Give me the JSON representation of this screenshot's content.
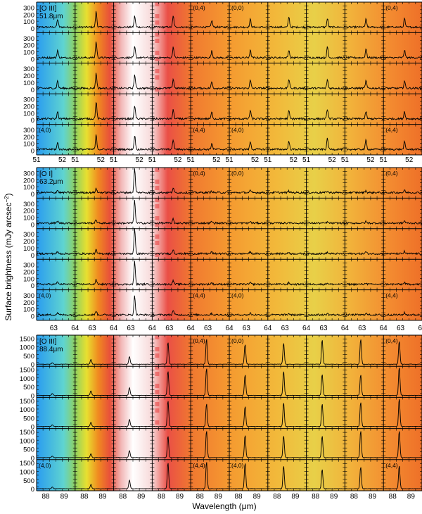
{
  "figure": {
    "ylabel_parts": [
      "Surface brightness (mJy arcsec",
      "−2",
      ")"
    ],
    "xlabel": "Wavelength (μm)"
  },
  "chart_data": [
    {
      "type": "line",
      "panel_label": "[O III]",
      "line_label": "51.8μm",
      "grid": {
        "rows": 5,
        "cols": 10
      },
      "xlim": [
        51.0,
        52.5
      ],
      "ylim": [
        -60,
        380
      ],
      "x_ticks": [
        "51",
        "52"
      ],
      "y_ticks": [
        "300",
        "200",
        "100",
        "0"
      ],
      "line_center": 51.82,
      "peak_per_column": [
        110,
        220,
        180,
        140,
        90,
        110,
        130,
        140,
        120,
        110
      ],
      "corner_labels": [
        {
          "text": "(0,4)",
          "row": 0,
          "col": 4
        },
        {
          "text": "(0,0)",
          "row": 0,
          "col": 5
        },
        {
          "text": "(0,4)",
          "row": 0,
          "col": 9
        },
        {
          "text": "(4,0)",
          "row": 4,
          "col": 0
        },
        {
          "text": "(4,4)",
          "row": 4,
          "col": 4
        },
        {
          "text": "(4,0)",
          "row": 4,
          "col": 5
        },
        {
          "text": "(4,4)",
          "row": 4,
          "col": 9
        }
      ]
    },
    {
      "type": "line",
      "panel_label": "[O I]",
      "line_label": "63.2μm",
      "grid": {
        "rows": 5,
        "cols": 10
      },
      "xlim": [
        62.2,
        64.0
      ],
      "ylim": [
        -60,
        380
      ],
      "x_ticks": [
        "63",
        "64"
      ],
      "y_ticks": [
        "300",
        "200",
        "100",
        "0"
      ],
      "line_center": 63.18,
      "peak_per_column": [
        30,
        60,
        330,
        60,
        25,
        25,
        20,
        20,
        25,
        30
      ],
      "corner_labels": [
        {
          "text": "(0,4)",
          "row": 0,
          "col": 4
        },
        {
          "text": "(0,0)",
          "row": 0,
          "col": 5
        },
        {
          "text": "(0,4)",
          "row": 0,
          "col": 9
        },
        {
          "text": "(4,0)",
          "row": 4,
          "col": 0
        },
        {
          "text": "(4,4)",
          "row": 4,
          "col": 4
        },
        {
          "text": "(4,0)",
          "row": 4,
          "col": 5
        },
        {
          "text": "(4,4)",
          "row": 4,
          "col": 9
        }
      ]
    },
    {
      "type": "line",
      "panel_label": "[O III]",
      "line_label": "88.4μm",
      "grid": {
        "rows": 5,
        "cols": 10
      },
      "xlim": [
        87.5,
        89.6
      ],
      "ylim": [
        -100,
        1700
      ],
      "x_ticks": [
        "88",
        "89"
      ],
      "y_ticks": [
        "1500",
        "1000",
        "500",
        "0"
      ],
      "line_center": 88.36,
      "peak_per_column": [
        100,
        250,
        450,
        1400,
        1400,
        1350,
        1300,
        1300,
        1400,
        1450
      ],
      "corner_labels": [
        {
          "text": "(0,4)",
          "row": 0,
          "col": 4
        },
        {
          "text": "(0,0)",
          "row": 0,
          "col": 5
        },
        {
          "text": "(0,4)",
          "row": 0,
          "col": 9
        },
        {
          "text": "(4,0)",
          "row": 4,
          "col": 0
        },
        {
          "text": "(4,4)",
          "row": 4,
          "col": 4
        },
        {
          "text": "(4,0)",
          "row": 4,
          "col": 5
        },
        {
          "text": "(4,4)",
          "row": 4,
          "col": 9
        }
      ]
    }
  ]
}
